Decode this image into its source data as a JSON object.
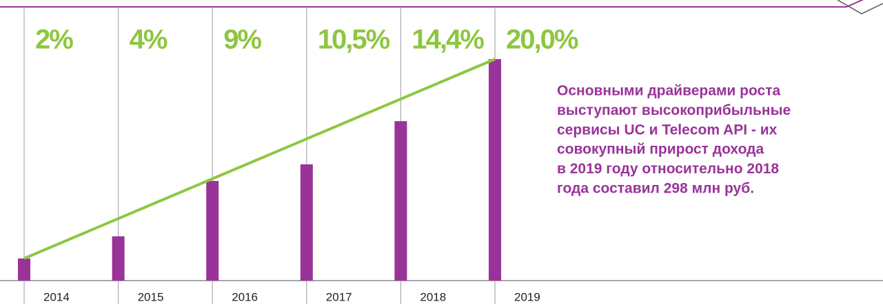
{
  "chart_data": {
    "type": "bar",
    "categories": [
      "2014",
      "2015",
      "2016",
      "2017",
      "2018",
      "2019"
    ],
    "values": [
      2,
      4,
      9,
      10.5,
      14.4,
      20.0
    ],
    "value_labels": [
      "2%",
      "4%",
      "9%",
      "10,5%",
      "14,4%",
      "20,0%"
    ],
    "color": "#993399",
    "label_color": "#8dc63f",
    "trend_color": "#8dc63f",
    "ylim": [
      0,
      20
    ],
    "annotation": [
      "Основными драйверами роста",
      "выступают высокоприбыльные",
      "сервисы UC и Telecom API - их",
      "совокупный прирост дохода",
      "в 2019 году относительно 2018",
      "года составил 298 млн руб."
    ]
  }
}
